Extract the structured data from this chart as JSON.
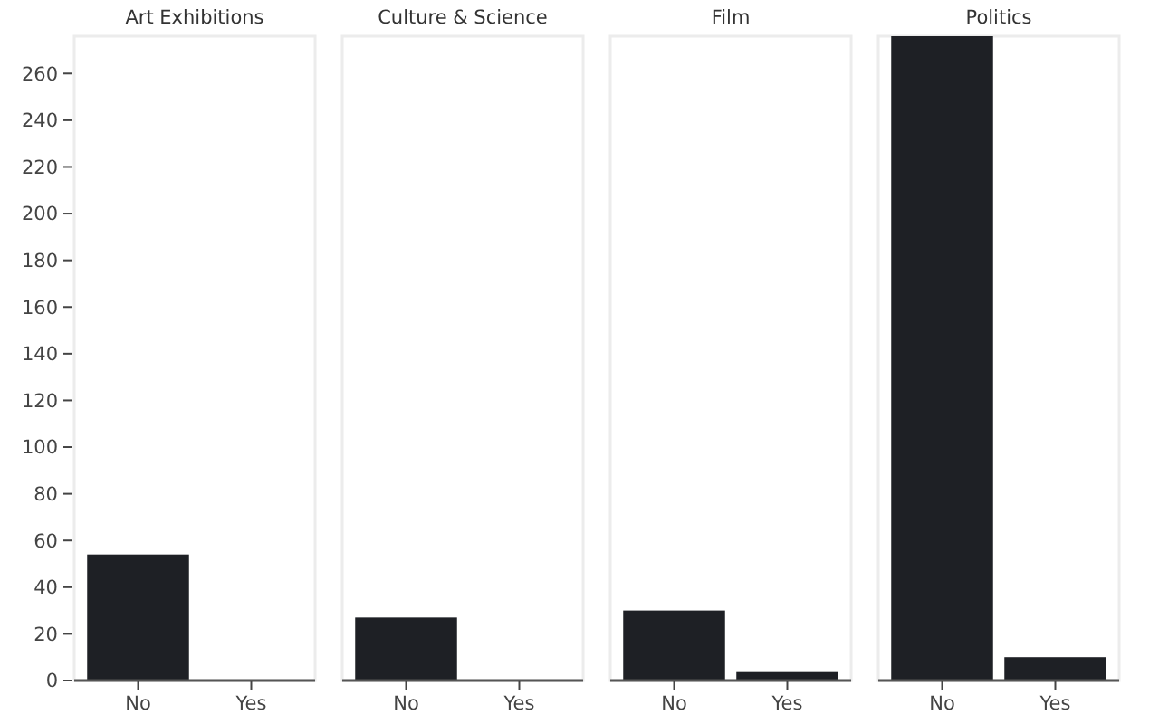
{
  "chart_data": [
    {
      "type": "bar",
      "title": "Art Exhibitions",
      "categories": [
        "No",
        "Yes"
      ],
      "values": [
        54,
        0
      ],
      "color": "#1e2025",
      "ylim": [
        0,
        276
      ],
      "yticks": [
        0,
        20,
        40,
        60,
        80,
        100,
        120,
        140,
        160,
        180,
        200,
        220,
        240,
        260
      ]
    },
    {
      "type": "bar",
      "title": "Culture & Science",
      "categories": [
        "No",
        "Yes"
      ],
      "values": [
        27,
        0
      ],
      "color": "#1e2025",
      "ylim": [
        0,
        276
      ],
      "tick_labels": "x"
    },
    {
      "type": "bar",
      "title": "Film",
      "categories": [
        "No",
        "Yes"
      ],
      "values": [
        30,
        4
      ],
      "color": "#1e2025",
      "ylim": [
        0,
        276
      ],
      "tick_labels": "x"
    },
    {
      "type": "bar",
      "title": "Politics",
      "categories": [
        "No",
        "Yes"
      ],
      "values": [
        276,
        10
      ],
      "color": "#1e2025",
      "ylim": [
        0,
        276
      ],
      "tick_labels": "x"
    }
  ]
}
